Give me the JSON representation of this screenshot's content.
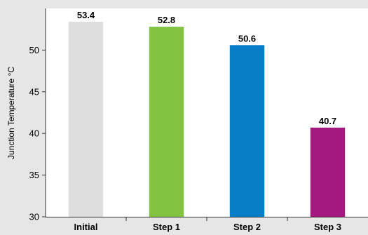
{
  "chart_data": {
    "type": "bar",
    "title": "",
    "xlabel": "",
    "ylabel": "Junction Temperature °C",
    "categories": [
      "Initial",
      "Step 1",
      "Step 2",
      "Step 3"
    ],
    "values": [
      53.4,
      52.8,
      50.6,
      40.7
    ],
    "value_labels": [
      "53.4",
      "52.8",
      "50.6",
      "40.7"
    ],
    "colors": [
      "#dededf",
      "#82c341",
      "#0a7dc8",
      "#a3197f"
    ],
    "ylim": [
      30,
      55
    ],
    "yticks": [
      30,
      35,
      40,
      45,
      50
    ],
    "ytick_labels": [
      "30",
      "35",
      "40",
      "45",
      "50"
    ],
    "grid": false,
    "legend": "none",
    "plot_background": "#ffffff",
    "page_background": "#e6e6e7"
  }
}
